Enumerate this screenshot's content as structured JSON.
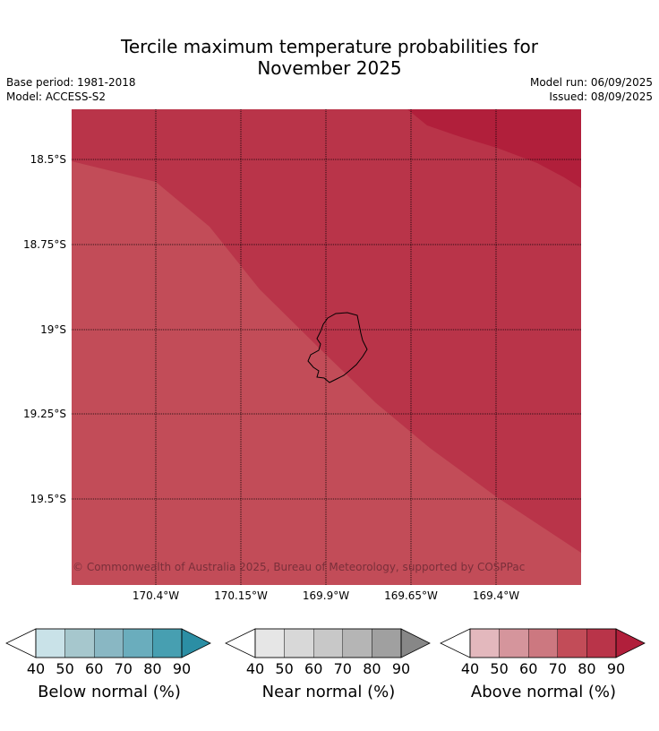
{
  "title_line1": "Tercile maximum temperature probabilities for",
  "title_line2": "November 2025",
  "base_period": "Base period: 1981-2018",
  "model": "Model: ACCESS-S2",
  "model_run": "Model run: 06/09/2025",
  "issued": "Issued: 08/09/2025",
  "map": {
    "lat_labels": [
      "18.5°S",
      "18.75°S",
      "19°S",
      "19.25°S",
      "19.5°S"
    ],
    "lon_labels": [
      "170.4°W",
      "170.15°W",
      "169.9°W",
      "169.65°W",
      "169.4°W"
    ],
    "copyright": "© Commonwealth of Australia 2025, Bureau of Meteorology, supported by COSPPac",
    "colors": {
      "above_70_80": "#c24c58",
      "above_80_90": "#b93449",
      "above_90": "#b11f3b"
    }
  },
  "colorbars": [
    {
      "label": "Below normal (%)",
      "ticks": [
        "40",
        "50",
        "60",
        "70",
        "80",
        "90"
      ],
      "colors": [
        "#c9e2e8",
        "#a6c7cd",
        "#89b7c3",
        "#6aadbd",
        "#479fb1",
        "#2b8ea4"
      ]
    },
    {
      "label": "Near normal (%)",
      "ticks": [
        "40",
        "50",
        "60",
        "70",
        "80",
        "90"
      ],
      "colors": [
        "#e6e6e6",
        "#d8d8d8",
        "#c8c8c8",
        "#b5b5b5",
        "#a0a0a0",
        "#878787"
      ]
    },
    {
      "label": "Above normal (%)",
      "ticks": [
        "40",
        "50",
        "60",
        "70",
        "80",
        "90"
      ],
      "colors": [
        "#e3b8bd",
        "#d5959c",
        "#cc7880",
        "#c24c58",
        "#b93449",
        "#b11f3b"
      ]
    }
  ]
}
